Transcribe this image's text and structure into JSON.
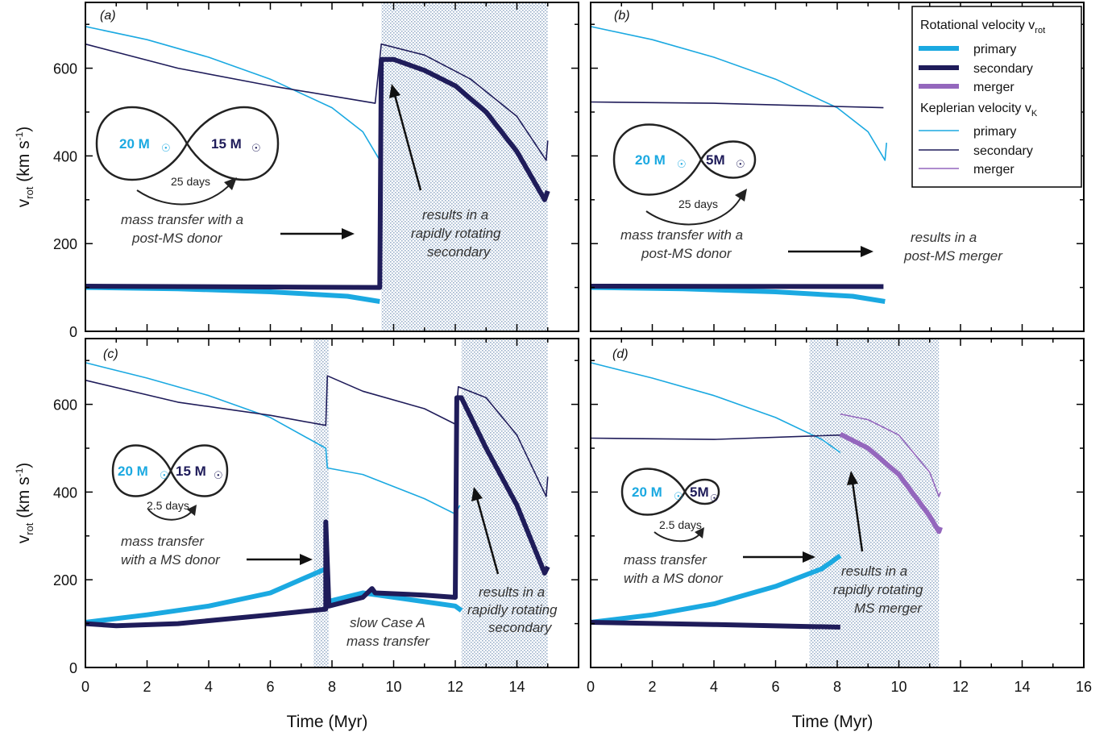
{
  "colors": {
    "primary": "#1ba9e1",
    "secondary": "#1f1c5a",
    "merger": "#9467bd",
    "shade": "#9fb4cf"
  },
  "axes": {
    "xlabel": "Time (Myr)",
    "ylabel_main": "v",
    "ylabel_sub": "rot",
    "ylabel_unit": " (km s",
    "ylabel_exp": "-1",
    "ylabel_close": ")"
  },
  "legend": {
    "rot_title": "Rotational velocity v",
    "rot_sub": "rot",
    "kep_title": "Keplerian velocity v",
    "kep_sub": "K",
    "items_rot": [
      "primary",
      "secondary",
      "merger"
    ],
    "items_kep": [
      "primary",
      "secondary",
      "merger"
    ]
  },
  "panels": [
    {
      "label": "(a)",
      "m1": "20 M",
      "m2": "15 M",
      "period": "25 days",
      "annot_left": [
        "mass transfer with a",
        "post-MS donor"
      ],
      "annot_right": [
        "results in a",
        "rapidly rotating",
        "secondary"
      ]
    },
    {
      "label": "(b)",
      "m1": "20 M",
      "m2": "5M",
      "period": "25 days",
      "annot_left": [
        "mass transfer with a",
        "post-MS donor"
      ],
      "annot_right": [
        "results in a",
        "post-MS merger"
      ]
    },
    {
      "label": "(c)",
      "m1": "20 M",
      "m2": "15 M",
      "period": "2.5 days",
      "annot_left": [
        "mass transfer",
        "with a MS donor"
      ],
      "annot_mid": [
        "slow Case A",
        "mass transfer"
      ],
      "annot_right": [
        "results in a",
        "rapidly rotating",
        "secondary"
      ]
    },
    {
      "label": "(d)",
      "m1": "20 M",
      "m2": "5M",
      "period": "2.5 days",
      "annot_left": [
        "mass transfer",
        "with a MS donor"
      ],
      "annot_right": [
        "results in a",
        "rapidly rotating",
        "MS merger"
      ]
    }
  ],
  "chart_data": [
    {
      "type": "line",
      "panel": "a",
      "xlim": [
        0,
        16
      ],
      "ylim": [
        0,
        750
      ],
      "x_ticks": [
        0,
        2,
        4,
        6,
        8,
        10,
        12,
        14
      ],
      "y_ticks": [
        0,
        200,
        400,
        600
      ],
      "shaded_x": [
        [
          9.6,
          15.0
        ]
      ],
      "series": [
        {
          "name": "Keplerian velocity primary",
          "points": [
            [
              0,
              695
            ],
            [
              2,
              665
            ],
            [
              4,
              625
            ],
            [
              6,
              575
            ],
            [
              8,
              510
            ],
            [
              9,
              455
            ],
            [
              9.55,
              390
            ],
            [
              9.6,
              430
            ]
          ]
        },
        {
          "name": "Keplerian velocity secondary",
          "points": [
            [
              0,
              655
            ],
            [
              3,
              600
            ],
            [
              6,
              560
            ],
            [
              9.4,
              520
            ],
            [
              9.6,
              655
            ],
            [
              11,
              630
            ],
            [
              12.5,
              575
            ],
            [
              14,
              490
            ],
            [
              14.95,
              390
            ],
            [
              15.0,
              435
            ]
          ]
        },
        {
          "name": "Rotational velocity primary",
          "points": [
            [
              0,
              100
            ],
            [
              3,
              97
            ],
            [
              6,
              90
            ],
            [
              8.5,
              80
            ],
            [
              9.55,
              68
            ]
          ]
        },
        {
          "name": "Rotational velocity secondary",
          "points": [
            [
              0,
              103
            ],
            [
              9.55,
              100
            ],
            [
              9.6,
              620
            ],
            [
              10,
              620
            ],
            [
              11,
              595
            ],
            [
              12,
              560
            ],
            [
              13,
              500
            ],
            [
              14,
              410
            ],
            [
              14.9,
              300
            ],
            [
              15.0,
              320
            ]
          ]
        }
      ]
    },
    {
      "type": "line",
      "panel": "b",
      "xlim": [
        0,
        16
      ],
      "ylim": [
        0,
        750
      ],
      "x_ticks": [
        0,
        2,
        4,
        6,
        8,
        10,
        12,
        14,
        16
      ],
      "y_ticks": [
        0,
        200,
        400,
        600
      ],
      "shaded_x": [],
      "series": [
        {
          "name": "Keplerian velocity primary",
          "points": [
            [
              0,
              695
            ],
            [
              2,
              665
            ],
            [
              4,
              625
            ],
            [
              6,
              575
            ],
            [
              8,
              510
            ],
            [
              9,
              455
            ],
            [
              9.55,
              390
            ],
            [
              9.6,
              430
            ]
          ]
        },
        {
          "name": "Keplerian velocity secondary",
          "points": [
            [
              0,
              523
            ],
            [
              4,
              520
            ],
            [
              9.5,
              510
            ]
          ]
        },
        {
          "name": "Rotational velocity primary",
          "points": [
            [
              0,
              100
            ],
            [
              3,
              97
            ],
            [
              6,
              90
            ],
            [
              8.5,
              80
            ],
            [
              9.55,
              68
            ]
          ]
        },
        {
          "name": "Rotational velocity secondary",
          "points": [
            [
              0,
              103
            ],
            [
              9.5,
              102
            ]
          ]
        }
      ]
    },
    {
      "type": "line",
      "panel": "c",
      "xlim": [
        0,
        16
      ],
      "ylim": [
        0,
        750
      ],
      "x_ticks": [
        0,
        2,
        4,
        6,
        8,
        10,
        12,
        14
      ],
      "y_ticks": [
        0,
        200,
        400,
        600
      ],
      "shaded_x": [
        [
          7.4,
          7.9
        ],
        [
          12.2,
          15.0
        ]
      ],
      "series": [
        {
          "name": "Keplerian velocity primary",
          "points": [
            [
              0,
              695
            ],
            [
              2,
              660
            ],
            [
              4,
              620
            ],
            [
              6,
              570
            ],
            [
              7.8,
              500
            ],
            [
              7.85,
              455
            ],
            [
              9,
              440
            ],
            [
              11,
              385
            ],
            [
              12,
              350
            ],
            [
              12.15,
              370
            ]
          ]
        },
        {
          "name": "Keplerian velocity secondary",
          "points": [
            [
              0,
              655
            ],
            [
              3,
              605
            ],
            [
              6,
              575
            ],
            [
              7.8,
              552
            ],
            [
              7.85,
              665
            ],
            [
              9,
              630
            ],
            [
              11,
              590
            ],
            [
              12,
              555
            ],
            [
              12.1,
              640
            ],
            [
              13,
              615
            ],
            [
              14,
              530
            ],
            [
              14.95,
              390
            ],
            [
              15.0,
              435
            ]
          ]
        },
        {
          "name": "Rotational velocity primary",
          "points": [
            [
              0,
              103
            ],
            [
              2,
              120
            ],
            [
              4,
              140
            ],
            [
              6,
              170
            ],
            [
              7.8,
              225
            ],
            [
              7.85,
              150
            ],
            [
              9,
              170
            ],
            [
              11,
              150
            ],
            [
              12,
              140
            ],
            [
              12.2,
              130
            ]
          ]
        },
        {
          "name": "Rotational velocity secondary",
          "points": [
            [
              0,
              100
            ],
            [
              1,
              95
            ],
            [
              3,
              100
            ],
            [
              6,
              120
            ],
            [
              7.8,
              133
            ],
            [
              7.8,
              332
            ],
            [
              7.9,
              140
            ],
            [
              9,
              160
            ],
            [
              9.3,
              180
            ],
            [
              9.4,
              170
            ],
            [
              11,
              165
            ],
            [
              12,
              160
            ],
            [
              12.05,
              615
            ],
            [
              12.2,
              615
            ],
            [
              13,
              500
            ],
            [
              14,
              370
            ],
            [
              14.9,
              215
            ],
            [
              15.0,
              230
            ]
          ]
        }
      ]
    },
    {
      "type": "line",
      "panel": "d",
      "xlim": [
        0,
        16
      ],
      "ylim": [
        0,
        750
      ],
      "x_ticks": [
        0,
        2,
        4,
        6,
        8,
        10,
        12,
        14,
        16
      ],
      "y_ticks": [
        0,
        200,
        400,
        600
      ],
      "shaded_x": [
        [
          7.1,
          11.3
        ]
      ],
      "series": [
        {
          "name": "Keplerian velocity primary",
          "points": [
            [
              0,
              695
            ],
            [
              2,
              660
            ],
            [
              4,
              620
            ],
            [
              6,
              570
            ],
            [
              7.5,
              520
            ],
            [
              8.1,
              490
            ]
          ]
        },
        {
          "name": "Keplerian velocity secondary",
          "points": [
            [
              0,
              523
            ],
            [
              4,
              520
            ],
            [
              8.1,
              530
            ]
          ]
        },
        {
          "name": "Keplerian velocity merger",
          "points": [
            [
              8.1,
              578
            ],
            [
              9,
              565
            ],
            [
              10,
              530
            ],
            [
              11,
              445
            ],
            [
              11.3,
              390
            ],
            [
              11.35,
              400
            ]
          ]
        },
        {
          "name": "Rotational velocity primary",
          "points": [
            [
              0,
              103
            ],
            [
              2,
              120
            ],
            [
              4,
              145
            ],
            [
              6,
              185
            ],
            [
              7.5,
              225
            ],
            [
              8.1,
              255
            ]
          ]
        },
        {
          "name": "Rotational velocity secondary",
          "points": [
            [
              0,
              103
            ],
            [
              4,
              98
            ],
            [
              8.1,
              92
            ]
          ]
        },
        {
          "name": "Rotational velocity merger",
          "points": [
            [
              8.1,
              532
            ],
            [
              9,
              500
            ],
            [
              10,
              440
            ],
            [
              11,
              345
            ],
            [
              11.3,
              310
            ],
            [
              11.35,
              320
            ]
          ]
        }
      ]
    }
  ]
}
